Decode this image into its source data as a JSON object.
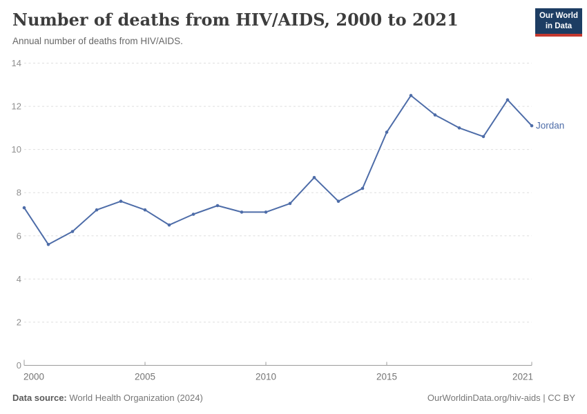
{
  "header": {
    "title": "Number of deaths from HIV/AIDS, 2000 to 2021",
    "subtitle": "Annual number of deaths from HIV/AIDS.",
    "logo": {
      "line1": "Our World",
      "line2": "in Data"
    }
  },
  "chart_data": {
    "type": "line",
    "title": "Number of deaths from HIV/AIDS, 2000 to 2021",
    "xlabel": "",
    "ylabel": "",
    "x": [
      2000,
      2001,
      2002,
      2003,
      2004,
      2005,
      2006,
      2007,
      2008,
      2009,
      2010,
      2011,
      2012,
      2013,
      2014,
      2015,
      2016,
      2017,
      2018,
      2019,
      2020,
      2021
    ],
    "series": [
      {
        "name": "Jordan",
        "color": "#4d6ca8",
        "values": [
          7.3,
          5.6,
          6.2,
          7.2,
          7.6,
          7.2,
          6.5,
          7.0,
          7.4,
          7.1,
          7.1,
          7.5,
          8.7,
          7.6,
          8.2,
          10.8,
          12.5,
          11.6,
          11.0,
          10.6,
          12.3,
          11.1
        ]
      }
    ],
    "xlim": [
      2000,
      2021
    ],
    "ylim": [
      0,
      14
    ],
    "xticks": [
      2000,
      2005,
      2010,
      2015,
      2021
    ],
    "yticks": [
      0,
      2,
      4,
      6,
      8,
      10,
      12,
      14
    ],
    "grid": true,
    "legend_position": "end-of-line"
  },
  "footer": {
    "source_label": "Data source:",
    "source_value": "World Health Organization (2024)",
    "link": "OurWorldinData.org/hiv-aids | CC BY"
  },
  "colors": {
    "accent": "#4d6ca8",
    "logo_bg": "#1d3d63",
    "logo_bar": "#c5392f"
  }
}
